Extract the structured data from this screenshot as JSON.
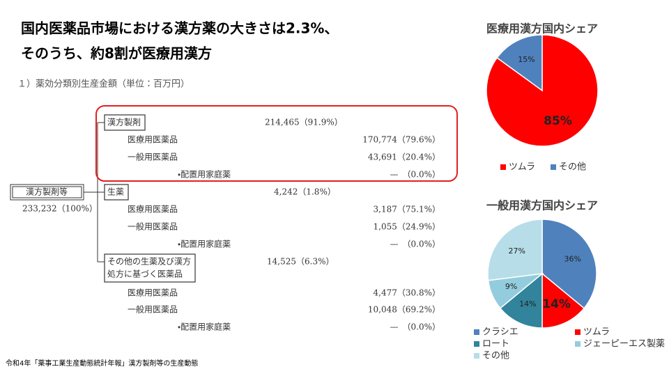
{
  "header": {
    "title_lines": [
      "国内医薬品市場における漢方薬の大きさは2.3%、",
      "そのうち、約8割が医療用漢方"
    ]
  },
  "table": {
    "caption": "１）薬効分類別生産金額（単位：百万円）",
    "root": {
      "name": "漢方製剤等",
      "amount": "233,232（100%）"
    },
    "groups": [
      {
        "name": [
          "漢方製剤"
        ],
        "amount": "214,465（91.9%）",
        "items": [
          {
            "label": "医療用医薬品",
            "amount": "170,774（79.6%）"
          },
          {
            "label": "一般用医薬品",
            "amount": "43,691（20.4%）"
          },
          {
            "label": "・配置用家庭薬",
            "amount": "—　（0.0%）"
          }
        ]
      },
      {
        "name": [
          "生薬"
        ],
        "amount": "4,242（1.8%）",
        "items": [
          {
            "label": "医療用医薬品",
            "amount": "3,187（75.1%）"
          },
          {
            "label": "一般用医薬品",
            "amount": "1,055（24.9%）"
          },
          {
            "label": "・配置用家庭薬",
            "amount": "—　（0.0%）"
          }
        ]
      },
      {
        "name": [
          "その他の生薬及び漢方",
          "処方に基づく医薬品"
        ],
        "amount": "14,525（6.3%）",
        "items": [
          {
            "label": "医療用医薬品",
            "amount": "4,477（30.8%）"
          },
          {
            "label": "一般用医薬品",
            "amount": "10,048（69.2%）"
          },
          {
            "label": "・配置用家庭薬",
            "amount": "—　（0.0%）"
          }
        ]
      }
    ]
  },
  "chart_data": [
    {
      "type": "pie",
      "title": "医療用漢方国内シェア",
      "categories": [
        "ツムラ",
        "その他"
      ],
      "values": [
        85,
        15
      ],
      "value_labels": [
        "85%",
        "15%"
      ],
      "colors": [
        "#ff0000",
        "#4f81bd"
      ]
    },
    {
      "type": "pie",
      "title": "一般用漢方国内シェア",
      "categories": [
        "クラシエ",
        "ツムラ",
        "ロート",
        "ジェーピーエス製薬",
        "その他"
      ],
      "values": [
        36,
        14,
        14,
        9,
        27
      ],
      "value_labels": [
        "36%",
        "14%",
        "14%",
        "9%",
        "27%"
      ],
      "colors": [
        "#4f81bd",
        "#ff0000",
        "#31849b",
        "#93cddd",
        "#b7dde8"
      ]
    }
  ],
  "source": "令和4年「薬事工業生産動態統計年報」漢方製剤等の生産動態"
}
